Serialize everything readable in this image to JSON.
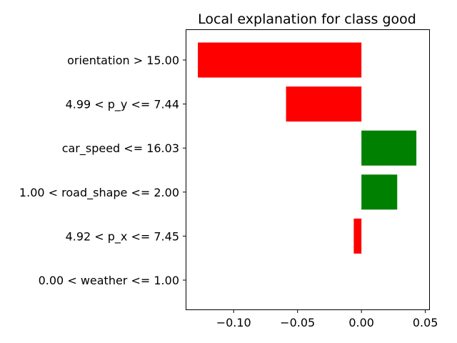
{
  "chart_data": {
    "type": "bar",
    "orientation": "horizontal",
    "title": "Local explanation for class good",
    "xlabel": "",
    "ylabel": "",
    "xlim": [
      -0.137,
      0.053
    ],
    "xticks": [
      {
        "value": -0.1,
        "label": "−0.10"
      },
      {
        "value": -0.05,
        "label": "−0.05"
      },
      {
        "value": 0.0,
        "label": "0.00"
      },
      {
        "value": 0.05,
        "label": "0.05"
      }
    ],
    "categories": [
      "orientation > 15.00",
      "4.99 < p_y <= 7.44",
      "car_speed <= 16.03",
      "1.00 < road_shape <= 2.00",
      "4.92 < p_x <= 7.45",
      "0.00 < weather <= 1.00"
    ],
    "values": [
      -0.128,
      -0.059,
      0.043,
      0.028,
      -0.006,
      0.0
    ],
    "colors": {
      "positive": "#008000",
      "negative": "#ff0000"
    },
    "grid": false,
    "legend": "none"
  }
}
